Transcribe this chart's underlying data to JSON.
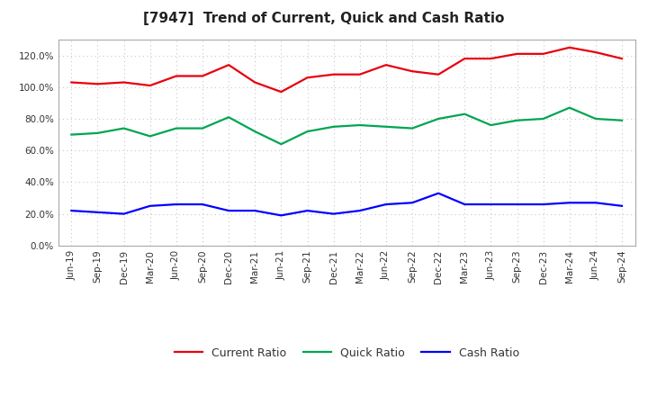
{
  "title": "[7947]  Trend of Current, Quick and Cash Ratio",
  "labels": [
    "Jun-19",
    "Sep-19",
    "Dec-19",
    "Mar-20",
    "Jun-20",
    "Sep-20",
    "Dec-20",
    "Mar-21",
    "Jun-21",
    "Sep-21",
    "Dec-21",
    "Mar-22",
    "Jun-22",
    "Sep-22",
    "Dec-22",
    "Mar-23",
    "Jun-23",
    "Sep-23",
    "Dec-23",
    "Mar-24",
    "Jun-24",
    "Sep-24"
  ],
  "current_ratio": [
    103,
    102,
    103,
    101,
    107,
    107,
    114,
    103,
    97,
    106,
    108,
    108,
    114,
    110,
    108,
    118,
    118,
    121,
    121,
    125,
    122,
    118
  ],
  "quick_ratio": [
    70,
    71,
    74,
    69,
    74,
    74,
    81,
    72,
    64,
    72,
    75,
    76,
    75,
    74,
    80,
    83,
    76,
    79,
    80,
    87,
    80,
    79
  ],
  "cash_ratio": [
    22,
    21,
    20,
    25,
    26,
    26,
    22,
    22,
    19,
    22,
    20,
    22,
    26,
    27,
    33,
    26,
    26,
    26,
    26,
    27,
    27,
    25
  ],
  "current_color": "#e8000d",
  "quick_color": "#00a550",
  "cash_color": "#0000ff",
  "ylim": [
    0,
    130
  ],
  "yticks": [
    0,
    20,
    40,
    60,
    80,
    100,
    120
  ],
  "bg_color": "#ffffff",
  "plot_bg_color": "#ffffff",
  "grid_color": "#c8c8c8",
  "line_width": 1.6,
  "legend_labels": [
    "Current Ratio",
    "Quick Ratio",
    "Cash Ratio"
  ]
}
